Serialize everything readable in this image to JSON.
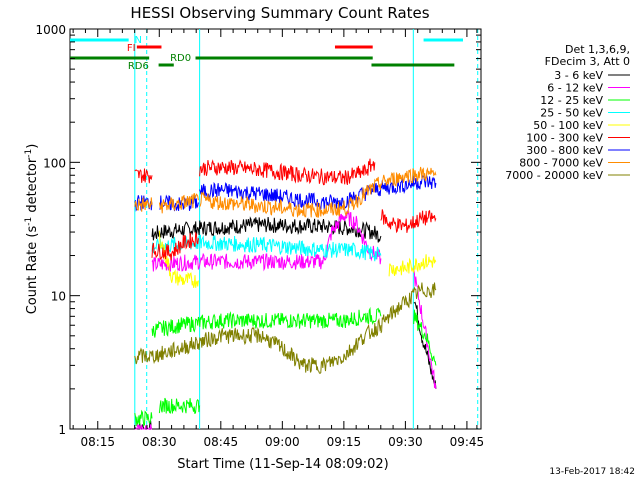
{
  "chart_data": {
    "type": "line",
    "title": "HESSI Observing Summary Count Rates",
    "xlabel": "Start Time (11-Sep-14 08:09:02)",
    "ylabel_main": "Count Rate (s",
    "ylabel_sup1": "-1",
    "ylabel_mid": " detector",
    "ylabel_sup2": "-1",
    "ylabel_end": ")",
    "y_scale": "log",
    "ylim": [
      1,
      1000
    ],
    "xlim_min": [
      8.0,
      50.0
    ],
    "x_ticks": [
      {
        "m": 14.9667,
        "label": "08:15"
      },
      {
        "m": 29.9667,
        "label": "08:30"
      },
      {
        "m": 44.9667,
        "label": "08:45"
      },
      {
        "m": 59.9667,
        "label": "09:00"
      },
      {
        "m": 74.9667,
        "label": "09:15"
      },
      {
        "m": 89.9667,
        "label": "09:30"
      },
      {
        "m": 104.9667,
        "label": "09:45"
      }
    ],
    "x_range_min": [
      8.2,
      108.4
    ],
    "y_ticks": [
      {
        "v": 1,
        "label": "1"
      },
      {
        "v": 10,
        "label": "10"
      },
      {
        "v": 100,
        "label": "100"
      },
      {
        "v": 1000,
        "label": "1000"
      }
    ],
    "legend_placement": "right",
    "legend_header": [
      "Det 1,3,6,9,",
      "FDecim 3, Att 0"
    ],
    "series": [
      {
        "name": "3 - 6 keV",
        "color": "#000000",
        "segments": [
          [
            [
              24.0,
              1
            ],
            [
              28.2,
              1
            ]
          ],
          [
            [
              28.2,
              28
            ],
            [
              30,
              30
            ],
            [
              40,
              32
            ],
            [
              55,
              34
            ],
            [
              70,
              33
            ],
            [
              77,
              32
            ],
            [
              82,
              30
            ],
            [
              84,
              28
            ]
          ],
          [
            [
              92,
              10
            ],
            [
              94,
              5
            ],
            [
              97.4,
              2
            ]
          ]
        ]
      },
      {
        "name": "6 - 12 keV",
        "color": "#ff00ff",
        "segments": [
          [
            [
              24.0,
              1
            ],
            [
              28.2,
              1
            ]
          ],
          [
            [
              28.2,
              17
            ],
            [
              40,
              18
            ],
            [
              55,
              18
            ],
            [
              70,
              18
            ],
            [
              72,
              30
            ],
            [
              75,
              40
            ],
            [
              78,
              35
            ],
            [
              81,
              22
            ],
            [
              84,
              19
            ]
          ],
          [
            [
              92,
              15
            ],
            [
              95,
              5
            ],
            [
              97.4,
              2
            ]
          ]
        ]
      },
      {
        "name": "12 - 25 keV",
        "color": "#00ff00",
        "segments": [
          [
            [
              24.0,
              1.2
            ],
            [
              28.2,
              1.2
            ]
          ],
          [
            [
              28.2,
              5.5
            ],
            [
              35,
              6
            ],
            [
              45,
              6.5
            ],
            [
              55,
              6.5
            ],
            [
              65,
              6.5
            ],
            [
              70,
              6.5
            ],
            [
              75,
              6.5
            ],
            [
              80,
              7
            ],
            [
              84,
              7
            ]
          ],
          [
            [
              30,
              1.5
            ],
            [
              39.8,
              1.5
            ]
          ],
          [
            [
              92,
              7
            ],
            [
              95,
              5
            ],
            [
              97.4,
              3
            ]
          ]
        ]
      },
      {
        "name": "25 - 50 keV",
        "color": "#00ffff",
        "segments": [
          [
            [
              28.2,
              23
            ],
            [
              33,
              24
            ],
            [
              40,
              25
            ],
            [
              55,
              24
            ],
            [
              70,
              22
            ],
            [
              77,
              22
            ],
            [
              81,
              21
            ],
            [
              84,
              20
            ]
          ]
        ]
      },
      {
        "name": "50 - 100 keV",
        "color": "#ffff00",
        "segments": [
          [
            [
              30,
              28
            ],
            [
              33,
              14
            ],
            [
              36,
              13
            ],
            [
              39.5,
              13
            ]
          ],
          [
            [
              86,
              16
            ],
            [
              90,
              16
            ],
            [
              94,
              18
            ],
            [
              97.4,
              18
            ]
          ]
        ]
      },
      {
        "name": "100 - 300 keV",
        "color": "#ff0000",
        "segments": [
          [
            [
              24.0,
              80
            ],
            [
              28.2,
              80
            ]
          ],
          [
            [
              28.2,
              22
            ],
            [
              33,
              21
            ],
            [
              36,
              25
            ],
            [
              39.5,
              27
            ]
          ],
          [
            [
              39.8,
              90
            ],
            [
              45,
              92
            ],
            [
              55,
              88
            ],
            [
              65,
              80
            ],
            [
              75,
              76
            ],
            [
              80,
              85
            ],
            [
              82.5,
              100
            ]
          ],
          [
            [
              84,
              40
            ],
            [
              86,
              35
            ],
            [
              90,
              33
            ],
            [
              94,
              38
            ],
            [
              97.4,
              38
            ]
          ]
        ]
      },
      {
        "name": "300 - 800 keV",
        "color": "#0000ff",
        "segments": [
          [
            [
              24.0,
              50
            ],
            [
              28.2,
              50
            ]
          ],
          [
            [
              30,
              50
            ],
            [
              35,
              48
            ],
            [
              39.5,
              50
            ]
          ],
          [
            [
              39.8,
              60
            ],
            [
              45,
              62
            ],
            [
              55,
              58
            ],
            [
              65,
              52
            ],
            [
              72,
              50
            ],
            [
              76,
              52
            ],
            [
              82,
              62
            ],
            [
              86,
              65
            ],
            [
              90,
              68
            ],
            [
              94,
              72
            ],
            [
              97.4,
              70
            ]
          ]
        ]
      },
      {
        "name": "800 - 7000 keV",
        "color": "#ff8c00",
        "segments": [
          [
            [
              24.0,
              48
            ],
            [
              28.2,
              48
            ]
          ],
          [
            [
              30,
              47
            ],
            [
              33,
              48
            ],
            [
              36,
              50
            ],
            [
              39.5,
              52
            ]
          ],
          [
            [
              39.8,
              52
            ],
            [
              45,
              50
            ],
            [
              55,
              47
            ],
            [
              65,
              44
            ],
            [
              72,
              44
            ],
            [
              76,
              46
            ],
            [
              80,
              58
            ],
            [
              84,
              70
            ],
            [
              90,
              80
            ],
            [
              94,
              82
            ],
            [
              97.4,
              80
            ]
          ]
        ]
      },
      {
        "name": "7000 - 20000 keV",
        "color": "#808000",
        "segments": [
          [
            [
              24.0,
              3.5
            ],
            [
              28.2,
              3.5
            ]
          ],
          [
            [
              28.2,
              3.5
            ],
            [
              35,
              4
            ],
            [
              40,
              4.5
            ],
            [
              45,
              5
            ],
            [
              55,
              5
            ],
            [
              60,
              4
            ],
            [
              65,
              3
            ],
            [
              70,
              3
            ],
            [
              75,
              3.5
            ],
            [
              80,
              5
            ],
            [
              84,
              6
            ]
          ],
          [
            [
              84,
              6
            ],
            [
              88,
              8
            ],
            [
              92,
              10
            ],
            [
              94,
              11
            ],
            [
              97.4,
              11
            ]
          ]
        ]
      }
    ],
    "obs_bars": [
      {
        "label": "N",
        "color": "#00ffff",
        "y": 40,
        "segs": [
          [
            8.2,
            22.5
          ],
          [
            94.4,
            109.5
          ]
        ]
      },
      {
        "label": "FI",
        "color": "#ff0000",
        "y": 47,
        "segs": [
          [
            24.5,
            30.5
          ],
          [
            72.8,
            82.0
          ]
        ]
      },
      {
        "label": "RD0",
        "color": "#008000",
        "y": 58,
        "segs": [
          [
            8.2,
            27.5
          ],
          [
            38.8,
            82.0
          ],
          [
            110,
            112
          ]
        ]
      },
      {
        "label": "RD6",
        "color": "#008000",
        "y": 65,
        "segs": [
          [
            29.8,
            33.5
          ],
          [
            81.7,
            101.9
          ]
        ]
      }
    ],
    "vlines_solid": [
      24.0,
      39.8,
      91.9
    ],
    "vlines_dashed": [
      26.9,
      107.6
    ],
    "footer_date": "13-Feb-2017 18:42"
  }
}
